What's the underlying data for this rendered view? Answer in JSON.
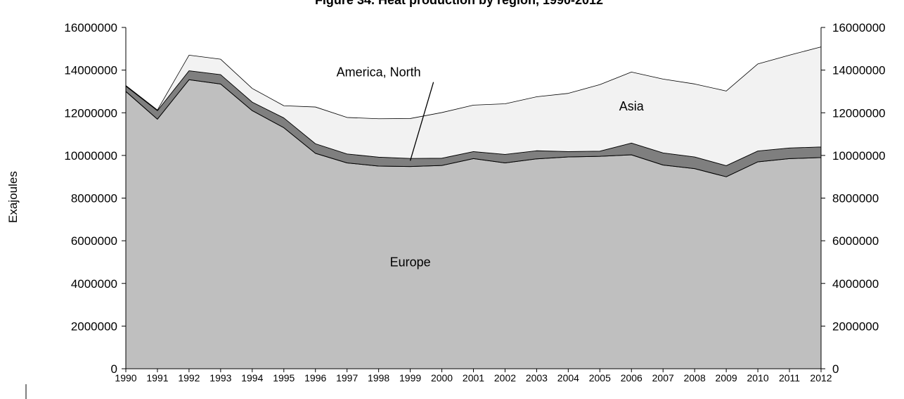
{
  "chart_data": {
    "type": "area",
    "stacked": true,
    "title": "Figure 34. Heat production by region, 1990-2012",
    "ylabel": "Exajoules",
    "xlabel": "",
    "ylim": [
      0,
      16000000
    ],
    "y_ticks": [
      "0",
      "2000000",
      "4000000",
      "6000000",
      "8000000",
      "10000000",
      "12000000",
      "14000000",
      "16000000"
    ],
    "y_ticks_right": [
      "0",
      "2000000",
      "4000000",
      "6000000",
      "8000000",
      "10000000",
      "12000000",
      "14000000",
      "16000000"
    ],
    "x": [
      "1990",
      "1991",
      "1992",
      "1993",
      "1994",
      "1995",
      "1996",
      "1997",
      "1998",
      "1999",
      "2000",
      "2001",
      "2002",
      "2003",
      "2004",
      "2005",
      "2006",
      "2007",
      "2008",
      "2009",
      "2010",
      "2011",
      "2012"
    ],
    "series": [
      {
        "name": "Europe",
        "color": "#bfbfbf",
        "values": [
          13000000,
          11700000,
          13550000,
          13350000,
          12100000,
          11300000,
          10100000,
          9650000,
          9500000,
          9480000,
          9530000,
          9850000,
          9650000,
          9840000,
          9930000,
          9960000,
          10030000,
          9550000,
          9380000,
          9000000,
          9700000,
          9850000,
          9900000
        ]
      },
      {
        "name": "America, North",
        "color": "#7f7f7f",
        "values": [
          250000,
          400000,
          420000,
          440000,
          400000,
          460000,
          450000,
          420000,
          420000,
          380000,
          340000,
          330000,
          400000,
          380000,
          250000,
          240000,
          550000,
          570000,
          550000,
          520000,
          510000,
          500000,
          500000
        ]
      },
      {
        "name": "Asia",
        "color": "#f2f2f2",
        "values": [
          30000,
          30000,
          730000,
          720000,
          640000,
          570000,
          1720000,
          1710000,
          1800000,
          1870000,
          2140000,
          2180000,
          2370000,
          2530000,
          2730000,
          3120000,
          3330000,
          3460000,
          3420000,
          3500000,
          4080000,
          4350000,
          4690000
        ]
      }
    ],
    "annotations": [
      {
        "text": "Europe",
        "x": "1999",
        "y": 4800000
      },
      {
        "text": "Asia",
        "x": "2006",
        "y": 12100000
      },
      {
        "text": "America, North",
        "x": "1998",
        "y": 13700000,
        "arrow_to": {
          "x": "1999",
          "y": 9750000
        }
      }
    ]
  }
}
